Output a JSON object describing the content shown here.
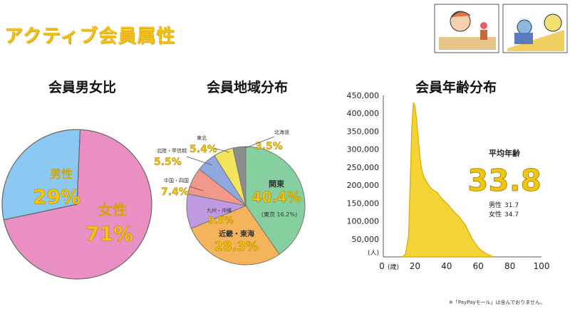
{
  "page": {
    "title": "アクティブ会員属性",
    "footnote": "※「PayPayモール」は含んでおりません。"
  },
  "chart_data": [
    {
      "type": "pie",
      "title": "会員男女比",
      "slices": [
        {
          "label": "女性",
          "value_label": "71%",
          "value": 71,
          "color": "#ea8fc3"
        },
        {
          "label": "男性",
          "value_label": "29%",
          "value": 29,
          "color": "#8bc8f2"
        }
      ]
    },
    {
      "type": "pie",
      "title": "会員地域分布",
      "slices": [
        {
          "label": "関東",
          "value_label": "40.4%",
          "sub_label": "(東京 16.2%)",
          "value": 40.4,
          "color": "#86cf9e"
        },
        {
          "label": "近畿・東海",
          "value_label": "28.3%",
          "value": 28.3,
          "color": "#f6b45a"
        },
        {
          "label": "九州・沖縄",
          "value_label": "9.5%",
          "value": 9.5,
          "color": "#bf9ae0"
        },
        {
          "label": "中国・四国",
          "value_label": "7.4%",
          "value": 7.4,
          "color": "#f2988a"
        },
        {
          "label": "北陸・甲信越",
          "value_label": "5.5%",
          "value": 5.5,
          "color": "#8fa9e0"
        },
        {
          "label": "東北",
          "value_label": "5.4%",
          "value": 5.4,
          "color": "#f4e35c"
        },
        {
          "label": "北海道",
          "value_label": "3.5%",
          "value": 3.5,
          "color": "#8c8c8c"
        }
      ]
    },
    {
      "type": "area",
      "title": "会員年齢分布",
      "color": "#f2cf1e",
      "x": [
        12,
        14,
        16,
        17,
        18,
        19,
        20,
        21,
        22,
        23,
        24,
        25,
        26,
        28,
        30,
        32,
        34,
        36,
        38,
        40,
        42,
        44,
        46,
        48,
        50,
        52,
        54,
        56,
        58,
        60,
        62,
        64,
        66,
        68,
        70
      ],
      "y": [
        0,
        8000,
        60000,
        210000,
        360000,
        430000,
        420000,
        385000,
        335000,
        285000,
        250000,
        232000,
        220000,
        205000,
        192000,
        185000,
        180000,
        168000,
        158000,
        150000,
        140000,
        130000,
        120000,
        112000,
        100000,
        88000,
        70000,
        52000,
        38000,
        26000,
        18000,
        12000,
        7000,
        3000,
        0
      ],
      "yticks": [
        "450,000",
        "400,000",
        "350,000",
        "300,000",
        "250,000",
        "200,000",
        "150,000",
        "100,000",
        "50,000"
      ],
      "ytick_values": [
        450000,
        400000,
        350000,
        300000,
        250000,
        200000,
        150000,
        100000,
        50000
      ],
      "y_unit": "(人)",
      "xticks": [
        "0",
        "20",
        "40",
        "60",
        "80",
        "100"
      ],
      "xtick_values": [
        0,
        20,
        40,
        60,
        80,
        100
      ],
      "x_unit": "(歳)",
      "xlim": [
        0,
        100
      ],
      "ylim": [
        0,
        450000
      ],
      "annotation": {
        "label": "平均年齢",
        "value": "33.8",
        "male_label": "男性",
        "male_value": "31.7",
        "female_label": "女性",
        "female_value": "34.7"
      }
    }
  ]
}
